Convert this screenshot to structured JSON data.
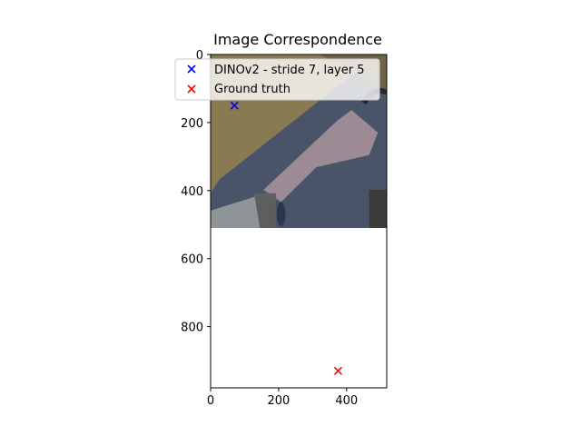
{
  "chart_data": {
    "type": "scatter",
    "title": "Image Correspondence",
    "xlabel": "",
    "ylabel": "",
    "xlim": [
      0,
      518
    ],
    "ylim": [
      980,
      0
    ],
    "y_inverted": true,
    "image_extent": {
      "x": [
        0,
        518
      ],
      "y": [
        0,
        510
      ]
    },
    "x_ticks": [
      0,
      200,
      400
    ],
    "y_ticks": [
      0,
      200,
      400,
      600,
      800
    ],
    "grid": false,
    "legend_position": "top-left",
    "series": [
      {
        "name": "DINOv2 - stride 7, layer 5",
        "marker": "x",
        "color": "#0000ff",
        "points": [
          {
            "x": 70,
            "y": 150
          }
        ]
      },
      {
        "name": "Ground truth",
        "marker": "x",
        "color": "#ff0000",
        "points": [
          {
            "x": 375,
            "y": 930
          }
        ]
      }
    ]
  }
}
